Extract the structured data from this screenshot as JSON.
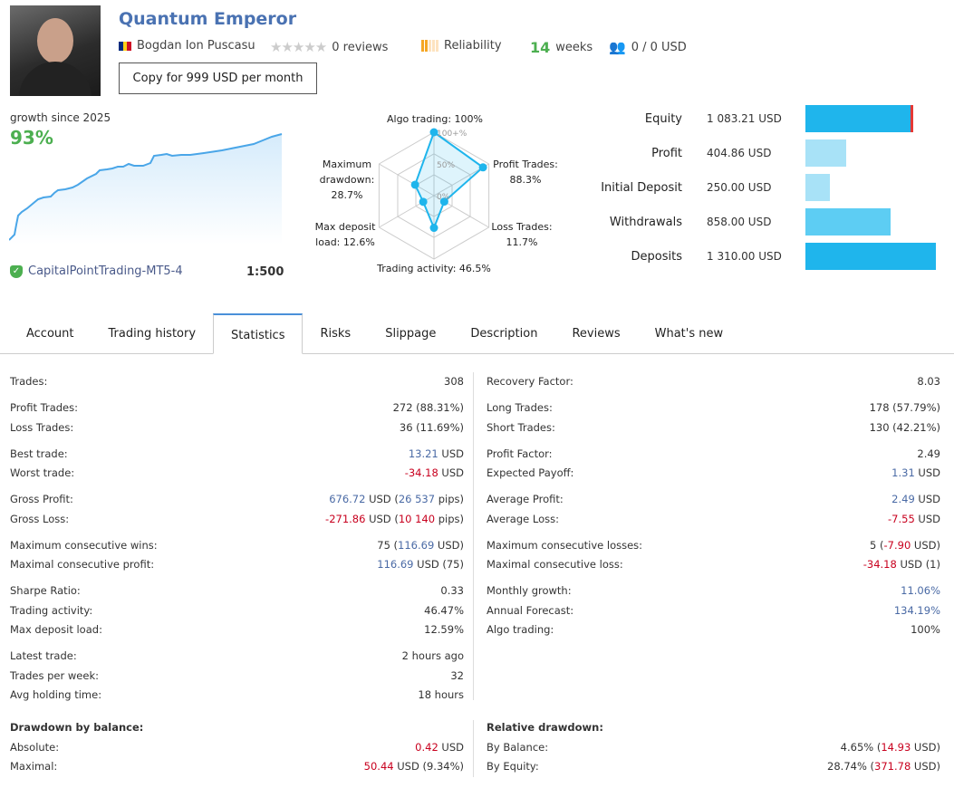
{
  "header": {
    "title": "Quantum Emperor",
    "author": "Bogdan Ion Puscasu",
    "reviews": "0 reviews",
    "rating_stars": 0,
    "reliability_label": "Reliability",
    "reliability_level": 2,
    "weeks_num": "14",
    "weeks_label": "weeks",
    "subscribers": "0 / 0 USD",
    "copy_button": "Copy for 999 USD per month"
  },
  "colors": {
    "accent": "#4a72b2",
    "green": "#4caf50",
    "positive": "#4a6aa5",
    "negative": "#c8001e",
    "bar_dark": "#1fb5ec",
    "bar_light": "#a8e2f7"
  },
  "growth": {
    "label": "growth since 2025",
    "value": "93%",
    "broker": "CapitalPointTrading-MT5-4",
    "leverage": "1:500"
  },
  "radar": {
    "labels": {
      "algo": "Algo trading: 100%",
      "profit": "Profit Trades: 88.3%",
      "loss": "Loss Trades: 11.7%",
      "activity": "Trading activity: 46.5%",
      "deposit": "Max deposit load: 12.6%",
      "drawdown": "Maximum drawdown: 28.7%"
    },
    "ticks": [
      "100+%",
      "50%",
      "0%"
    ],
    "values": [
      100,
      88.3,
      11.7,
      46.5,
      12.6,
      28.7
    ]
  },
  "balances": [
    {
      "label": "Equity",
      "value": "1 083.21 USD",
      "amount": 1083.21
    },
    {
      "label": "Profit",
      "value": "404.86 USD",
      "amount": 404.86
    },
    {
      "label": "Initial Deposit",
      "value": "250.00 USD",
      "amount": 250
    },
    {
      "label": "Withdrawals",
      "value": "858.00 USD",
      "amount": 858
    },
    {
      "label": "Deposits",
      "value": "1 310.00 USD",
      "amount": 1310
    }
  ],
  "tabs": [
    {
      "label": "Account"
    },
    {
      "label": "Trading history"
    },
    {
      "label": "Statistics",
      "active": true
    },
    {
      "label": "Risks"
    },
    {
      "label": "Slippage"
    },
    {
      "label": "Description"
    },
    {
      "label": "Reviews"
    },
    {
      "label": "What's new"
    }
  ],
  "stats_left": [
    [
      {
        "label": "Trades:",
        "value": [
          [
            "308",
            "dark"
          ]
        ]
      }
    ],
    [
      {
        "label": "Profit Trades:",
        "value": [
          [
            "272 (88.31%)",
            "dark"
          ]
        ]
      },
      {
        "label": "Loss Trades:",
        "value": [
          [
            "36 (11.69%)",
            "dark"
          ]
        ]
      }
    ],
    [
      {
        "label": "Best trade:",
        "value": [
          [
            "13.21",
            "blue"
          ],
          [
            " USD",
            "dark"
          ]
        ]
      },
      {
        "label": "Worst trade:",
        "value": [
          [
            "-34.18",
            "red"
          ],
          [
            " USD",
            "dark"
          ]
        ]
      }
    ],
    [
      {
        "label": "Gross Profit:",
        "value": [
          [
            "676.72",
            "blue"
          ],
          [
            " USD (",
            "dark"
          ],
          [
            "26 537",
            "blue"
          ],
          [
            " pips)",
            "dark"
          ]
        ]
      },
      {
        "label": "Gross Loss:",
        "value": [
          [
            "-271.86",
            "red"
          ],
          [
            " USD (",
            "dark"
          ],
          [
            "10 140",
            "red"
          ],
          [
            " pips)",
            "dark"
          ]
        ]
      }
    ],
    [
      {
        "label": "Maximum consecutive wins:",
        "value": [
          [
            "75 (",
            "dark"
          ],
          [
            "116.69",
            "blue"
          ],
          [
            " USD)",
            "dark"
          ]
        ]
      },
      {
        "label": "Maximal consecutive profit:",
        "value": [
          [
            "116.69",
            "blue"
          ],
          [
            " USD (75)",
            "dark"
          ]
        ]
      }
    ],
    [
      {
        "label": "Sharpe Ratio:",
        "value": [
          [
            "0.33",
            "dark"
          ]
        ]
      },
      {
        "label": "Trading activity:",
        "value": [
          [
            "46.47%",
            "dark"
          ]
        ]
      },
      {
        "label": "Max deposit load:",
        "value": [
          [
            "12.59%",
            "dark"
          ]
        ]
      }
    ],
    [
      {
        "label": "Latest trade:",
        "value": [
          [
            "2 hours ago",
            "dark"
          ]
        ]
      },
      {
        "label": "Trades per week:",
        "value": [
          [
            "32",
            "dark"
          ]
        ]
      },
      {
        "label": "Avg holding time:",
        "value": [
          [
            "18 hours",
            "dark"
          ]
        ]
      }
    ]
  ],
  "stats_right": [
    [
      {
        "label": "Recovery Factor:",
        "value": [
          [
            "8.03",
            "dark"
          ]
        ]
      }
    ],
    [
      {
        "label": "Long Trades:",
        "value": [
          [
            "178 (57.79%)",
            "dark"
          ]
        ]
      },
      {
        "label": "Short Trades:",
        "value": [
          [
            "130 (42.21%)",
            "dark"
          ]
        ]
      }
    ],
    [
      {
        "label": "Profit Factor:",
        "value": [
          [
            "2.49",
            "dark"
          ]
        ]
      },
      {
        "label": "Expected Payoff:",
        "value": [
          [
            "1.31",
            "blue"
          ],
          [
            " USD",
            "dark"
          ]
        ]
      }
    ],
    [
      {
        "label": "Average Profit:",
        "value": [
          [
            "2.49",
            "blue"
          ],
          [
            " USD",
            "dark"
          ]
        ]
      },
      {
        "label": "Average Loss:",
        "value": [
          [
            "-7.55",
            "red"
          ],
          [
            " USD",
            "dark"
          ]
        ]
      }
    ],
    [
      {
        "label": "Maximum consecutive losses:",
        "value": [
          [
            "5 (",
            "dark"
          ],
          [
            "-7.90",
            "red"
          ],
          [
            " USD)",
            "dark"
          ]
        ]
      },
      {
        "label": "Maximal consecutive loss:",
        "value": [
          [
            "-34.18",
            "red"
          ],
          [
            " USD (1)",
            "dark"
          ]
        ]
      }
    ],
    [
      {
        "label": "Monthly growth:",
        "value": [
          [
            "11.06%",
            "blue"
          ]
        ]
      },
      {
        "label": "Annual Forecast:",
        "value": [
          [
            "134.19%",
            "blue"
          ]
        ]
      },
      {
        "label": "Algo trading:",
        "value": [
          [
            "100%",
            "dark"
          ]
        ]
      }
    ]
  ],
  "drawdown_left": {
    "title": "Drawdown by balance:",
    "rows": [
      {
        "label": "Absolute:",
        "value": [
          [
            "0.42",
            "red"
          ],
          [
            " USD",
            "dark"
          ]
        ]
      },
      {
        "label": "Maximal:",
        "value": [
          [
            "50.44",
            "red"
          ],
          [
            " USD (9.34%)",
            "dark"
          ]
        ]
      }
    ]
  },
  "drawdown_right": {
    "title": "Relative drawdown:",
    "rows": [
      {
        "label": "By Balance:",
        "value": [
          [
            "4.65% (",
            "dark"
          ],
          [
            "14.93",
            "red"
          ],
          [
            " USD)",
            "dark"
          ]
        ]
      },
      {
        "label": "By Equity:",
        "value": [
          [
            "28.74% (",
            "dark"
          ],
          [
            "371.78",
            "red"
          ],
          [
            " USD)",
            "dark"
          ]
        ]
      }
    ]
  }
}
